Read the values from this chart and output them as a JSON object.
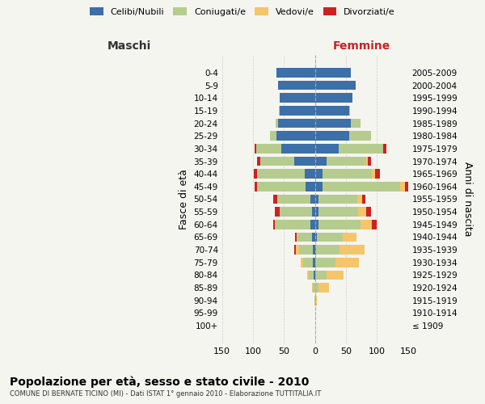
{
  "age_groups": [
    "100+",
    "95-99",
    "90-94",
    "85-89",
    "80-84",
    "75-79",
    "70-74",
    "65-69",
    "60-64",
    "55-59",
    "50-54",
    "45-49",
    "40-44",
    "35-39",
    "30-34",
    "25-29",
    "20-24",
    "15-19",
    "10-14",
    "5-9",
    "0-4"
  ],
  "birth_years": [
    "≤ 1909",
    "1910-1914",
    "1915-1919",
    "1920-1924",
    "1925-1929",
    "1930-1934",
    "1935-1939",
    "1940-1944",
    "1945-1949",
    "1950-1954",
    "1955-1959",
    "1960-1964",
    "1965-1969",
    "1970-1974",
    "1975-1979",
    "1980-1984",
    "1985-1989",
    "1990-1994",
    "1995-1999",
    "2000-2004",
    "2005-2009"
  ],
  "male": {
    "celibi": [
      0,
      0,
      0,
      0,
      2,
      3,
      4,
      5,
      8,
      5,
      8,
      15,
      16,
      33,
      55,
      62,
      60,
      57,
      57,
      60,
      62
    ],
    "coniugati": [
      0,
      0,
      1,
      3,
      8,
      16,
      22,
      22,
      55,
      52,
      53,
      78,
      78,
      55,
      40,
      10,
      3,
      1,
      0,
      0,
      0
    ],
    "vedovi": [
      0,
      0,
      0,
      2,
      3,
      4,
      5,
      3,
      2,
      0,
      0,
      0,
      0,
      0,
      0,
      0,
      0,
      0,
      0,
      0,
      0
    ],
    "divorziati": [
      0,
      0,
      0,
      0,
      0,
      0,
      3,
      2,
      2,
      8,
      7,
      5,
      5,
      5,
      2,
      0,
      0,
      0,
      0,
      0,
      0
    ]
  },
  "female": {
    "nubili": [
      0,
      0,
      0,
      0,
      0,
      1,
      2,
      3,
      5,
      5,
      6,
      12,
      12,
      18,
      38,
      55,
      58,
      55,
      60,
      65,
      58
    ],
    "coniugate": [
      0,
      0,
      1,
      5,
      18,
      32,
      38,
      42,
      68,
      65,
      62,
      125,
      80,
      65,
      72,
      35,
      15,
      2,
      0,
      0,
      0
    ],
    "vedove": [
      0,
      1,
      2,
      18,
      28,
      38,
      40,
      22,
      18,
      12,
      8,
      8,
      5,
      2,
      0,
      0,
      0,
      0,
      0,
      0,
      0
    ],
    "divorziate": [
      0,
      0,
      0,
      0,
      0,
      0,
      0,
      0,
      8,
      8,
      5,
      8,
      8,
      5,
      5,
      0,
      0,
      0,
      0,
      0,
      0
    ]
  },
  "colors": {
    "celibi": "#3d6fa8",
    "coniugati": "#b5cc8e",
    "vedovi": "#f5c56a",
    "divorziati": "#cc2222"
  },
  "xlim": 150,
  "title": "Popolazione per età, sesso e stato civile - 2010",
  "subtitle": "COMUNE DI BERNATE TICINO (MI) - Dati ISTAT 1° gennaio 2010 - Elaborazione TUTTITALIA.IT",
  "ylabel_left": "Fasce di età",
  "ylabel_right": "Anni di nascita",
  "xlabel_left": "Maschi",
  "xlabel_right": "Femmine",
  "bg_color": "#f5f5f0",
  "grid_color": "#cccccc"
}
